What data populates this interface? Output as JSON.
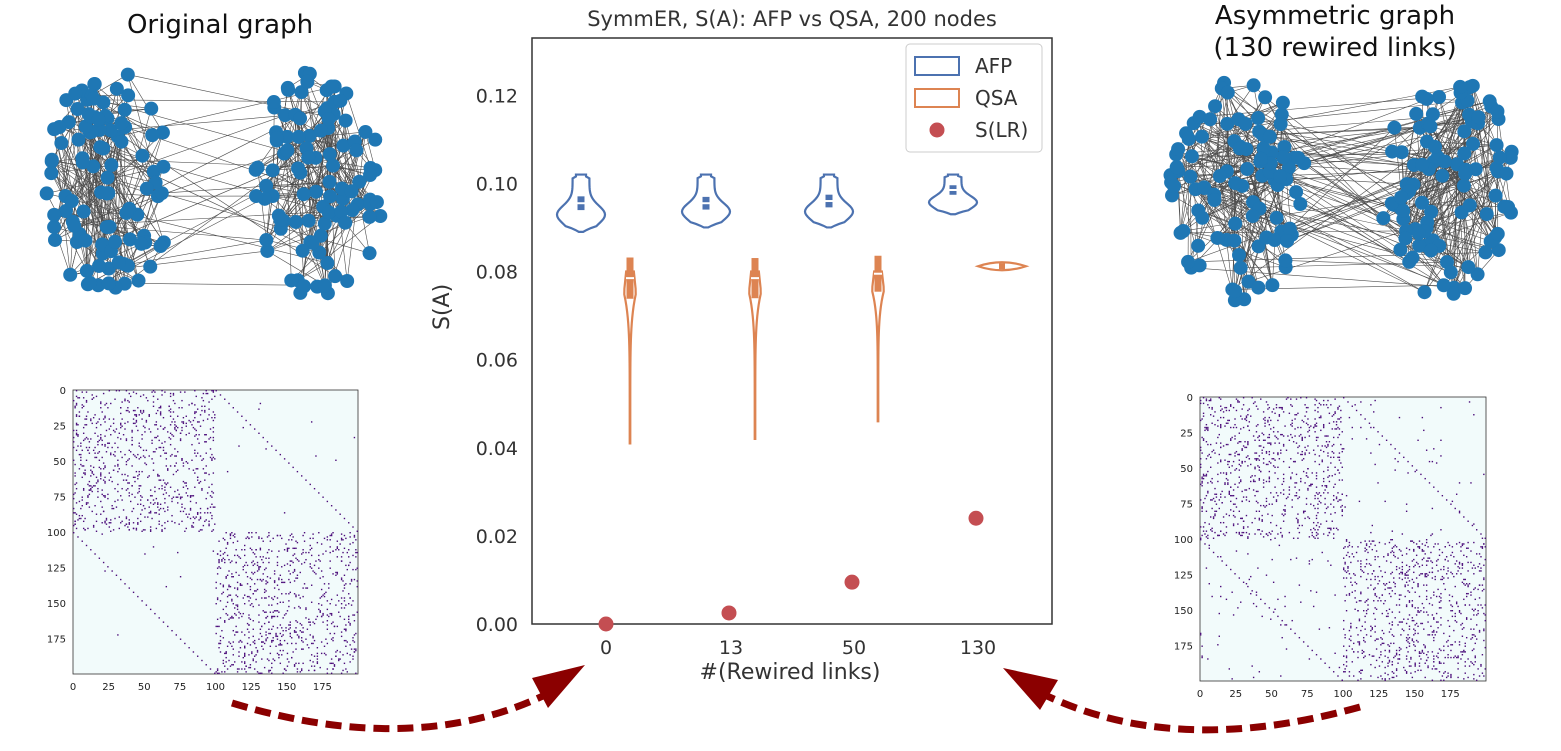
{
  "left_panel": {
    "title": "Original graph",
    "matrix_ticks_y": [
      "0",
      "25",
      "50",
      "75",
      "100",
      "125",
      "150",
      "175"
    ],
    "matrix_ticks_x": [
      "0",
      "25",
      "50",
      "75",
      "100",
      "125",
      "150",
      "175"
    ]
  },
  "right_panel": {
    "title_line1": "Asymmetric graph",
    "title_line2": "(130 rewired links)",
    "matrix_ticks_y": [
      "0",
      "25",
      "50",
      "75",
      "100",
      "125",
      "150",
      "175"
    ],
    "matrix_ticks_x": [
      "0",
      "25",
      "50",
      "75",
      "100",
      "125",
      "150",
      "175"
    ]
  },
  "colors": {
    "node": "#1f77b4",
    "afp": "#4c72b0",
    "qsa": "#dd8452",
    "slr": "#c44e52",
    "matrix_bg": "#f2fbfb",
    "matrix_dot": "#4b0c7a",
    "arrow": "#8b0000"
  },
  "chart_data": {
    "type": "violin",
    "title": "SymmER, S(A): AFP vs QSA, 200 nodes",
    "xlabel": "#(Rewired links)",
    "ylabel": "S(A)",
    "categories": [
      "0",
      "13",
      "50",
      "130"
    ],
    "ylim": [
      0.0,
      0.133
    ],
    "yticks": [
      "0.00",
      "0.02",
      "0.04",
      "0.06",
      "0.08",
      "0.10",
      "0.12"
    ],
    "legend": [
      "AFP",
      "QSA",
      "S(LR)"
    ],
    "legend_position": "top-right",
    "series": [
      {
        "name": "AFP",
        "kind": "violin",
        "ranges": [
          [
            0.089,
            0.102
          ],
          [
            0.09,
            0.102
          ],
          [
            0.09,
            0.102
          ],
          [
            0.093,
            0.102
          ]
        ],
        "medians": [
          0.0955,
          0.0955,
          0.096,
          0.0985
        ]
      },
      {
        "name": "QSA",
        "kind": "violin",
        "ranges": [
          [
            0.041,
            0.08
          ],
          [
            0.042,
            0.08
          ],
          [
            0.046,
            0.08
          ],
          [
            0.08,
            0.0825
          ]
        ],
        "medians": [
          0.0785,
          0.0785,
          0.0795,
          0.0812
        ]
      },
      {
        "name": "S(LR)",
        "kind": "scatter",
        "values": [
          0.0,
          0.0025,
          0.0095,
          0.024
        ]
      }
    ]
  }
}
